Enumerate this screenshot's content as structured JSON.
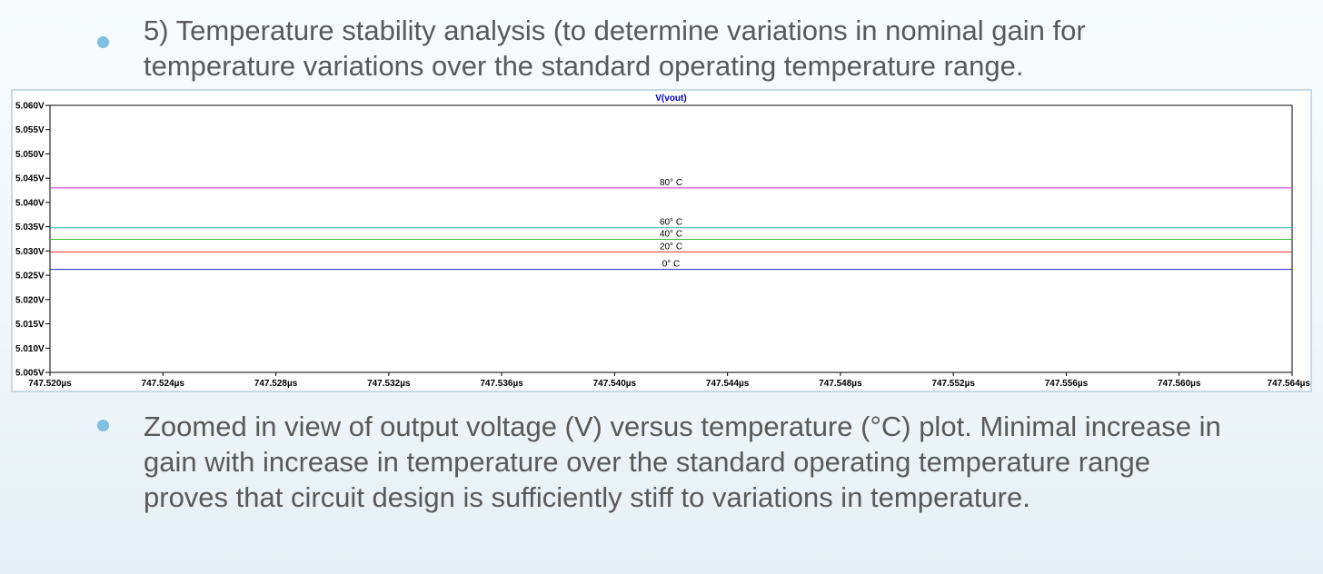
{
  "bullets": [
    {
      "line1": "5) Temperature stability analysis (to determine variations in nominal gain for",
      "line2": "temperature variations over the standard operating temperature range."
    },
    {
      "text": "Zoomed in view of output voltage (V) versus temperature (°C) plot. Minimal increase in gain with increase in temperature over the standard operating temperature range proves that circuit design is sufficiently stiff to variations in temperature."
    }
  ],
  "colors": {
    "bullet": "#7fbfdf",
    "80C": "#cc33cc",
    "60C": "#33aaaa",
    "40C": "#33bb33",
    "20C": "#ee3333",
    "0C": "#2222bb"
  },
  "chart_data": {
    "type": "line",
    "title": "V(vout)",
    "xlim": [
      747.52,
      747.564
    ],
    "ylim": [
      5.005,
      5.06
    ],
    "x_ticks": [
      "747.520µs",
      "747.524µs",
      "747.528µs",
      "747.532µs",
      "747.536µs",
      "747.540µs",
      "747.544µs",
      "747.548µs",
      "747.552µs",
      "747.556µs",
      "747.560µs",
      "747.564µs"
    ],
    "x_tick_values": [
      747.52,
      747.524,
      747.528,
      747.532,
      747.536,
      747.54,
      747.544,
      747.548,
      747.552,
      747.556,
      747.56,
      747.564
    ],
    "y_ticks": [
      "5.060V",
      "5.055V",
      "5.050V",
      "5.045V",
      "5.040V",
      "5.035V",
      "5.030V",
      "5.025V",
      "5.020V",
      "5.015V",
      "5.010V",
      "5.005V"
    ],
    "y_tick_values": [
      5.06,
      5.055,
      5.05,
      5.045,
      5.04,
      5.035,
      5.03,
      5.025,
      5.02,
      5.015,
      5.01,
      5.005
    ],
    "grid": false,
    "series": [
      {
        "name": "80° C",
        "color_key": "80C",
        "x": [
          747.52,
          747.564
        ],
        "values": [
          5.043,
          5.043
        ]
      },
      {
        "name": "60° C",
        "color_key": "60C",
        "x": [
          747.52,
          747.564
        ],
        "values": [
          5.0348,
          5.0348
        ]
      },
      {
        "name": "40° C",
        "color_key": "40C",
        "x": [
          747.52,
          747.564
        ],
        "values": [
          5.0324,
          5.0324
        ]
      },
      {
        "name": "20° C",
        "color_key": "20C",
        "x": [
          747.52,
          747.564
        ],
        "values": [
          5.0298,
          5.0298
        ]
      },
      {
        "name": "0° C",
        "color_key": "0C",
        "x": [
          747.52,
          747.564
        ],
        "values": [
          5.0262,
          5.0262
        ]
      }
    ]
  }
}
